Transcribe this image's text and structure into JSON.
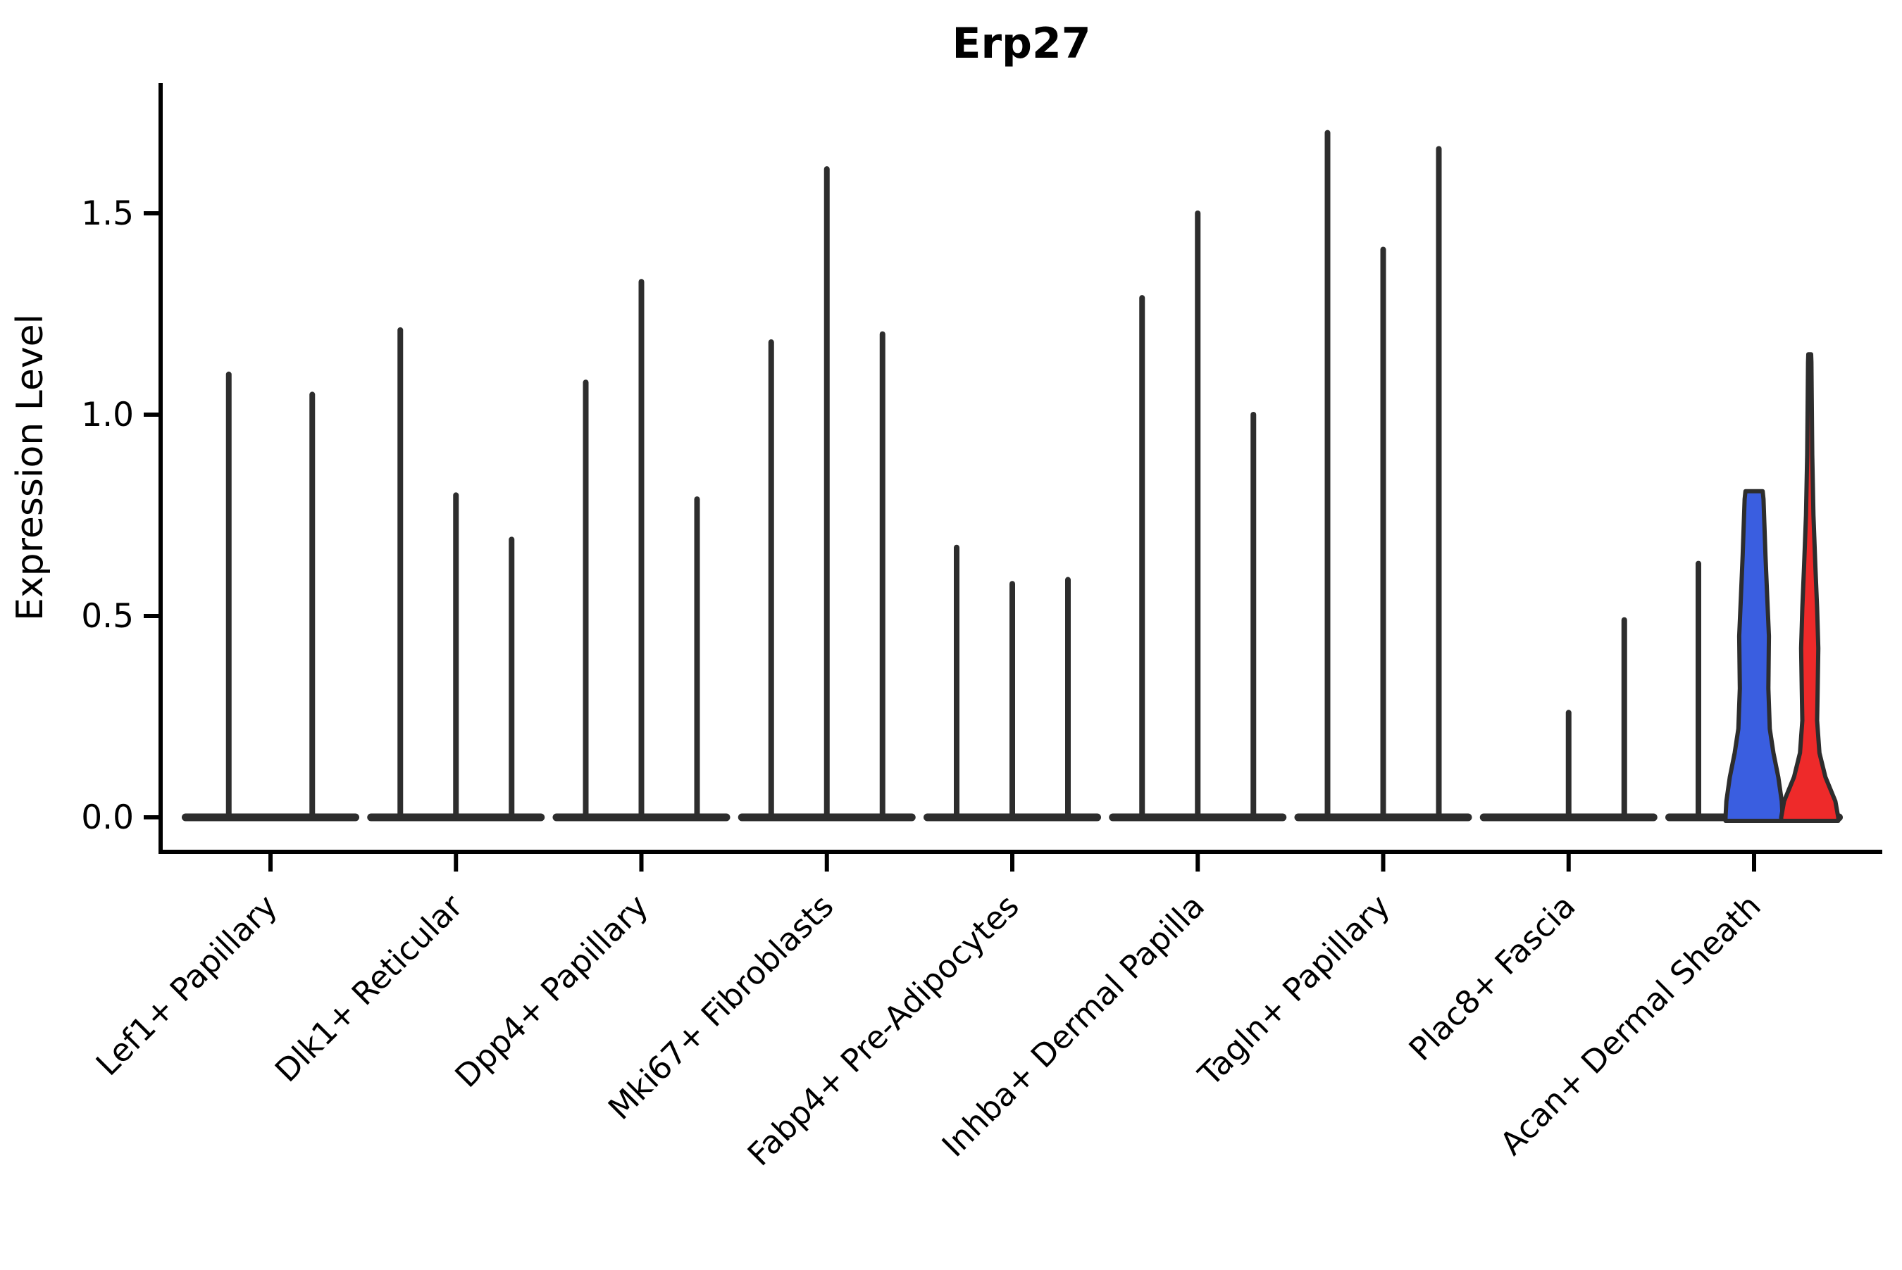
{
  "title": "Erp27",
  "axis": {
    "ylabel": "Expression Level",
    "ytick_labels": [
      "0.0",
      "0.5",
      "1.0",
      "1.5"
    ],
    "ytick_values": [
      0.0,
      0.5,
      1.0,
      1.5
    ]
  },
  "colors": {
    "violin_blue": "#3a5ee0",
    "violin_red": "#ee2a2a",
    "line_dark": "#2d2d2d",
    "axis_black": "#000000"
  },
  "chart_data": {
    "type": "violin",
    "title": "Erp27",
    "xlabel": "",
    "ylabel": "Expression Level",
    "ylim": [
      0,
      1.82
    ],
    "yticks": [
      0.0,
      0.5,
      1.0,
      1.5
    ],
    "grid": false,
    "legend": "none",
    "categories": [
      "Lef1+ Papillary",
      "Dlk1+ Reticular",
      "Dpp4+ Papillary",
      "Mki67+ Fibroblasts",
      "Fabp4+ Pre-Adipocytes",
      "Inhba+ Dermal Papilla",
      "Tagln+ Papillary",
      "Plac8+ Fascia",
      "Acan+ Dermal Sheath"
    ],
    "description": "Violin plot of Erp27 expression per fibroblast subtype; most violins collapse to a flat base at 0 with a thin spike to the max expressed cell. Only the last cluster (Acan+ Dermal Sheath) shows two filled violins (blue and red).",
    "groups": [
      {
        "category": "Lef1+ Papillary",
        "violins": [
          {
            "max_expression": 1.1,
            "fill": "none"
          },
          {
            "max_expression": 1.05,
            "fill": "none"
          }
        ]
      },
      {
        "category": "Dlk1+ Reticular",
        "violins": [
          {
            "max_expression": 1.21,
            "fill": "none"
          },
          {
            "max_expression": 0.8,
            "fill": "none"
          },
          {
            "max_expression": 0.69,
            "fill": "none"
          }
        ]
      },
      {
        "category": "Dpp4+ Papillary",
        "violins": [
          {
            "max_expression": 1.08,
            "fill": "none"
          },
          {
            "max_expression": 1.33,
            "fill": "none"
          },
          {
            "max_expression": 0.79,
            "fill": "none"
          }
        ]
      },
      {
        "category": "Mki67+ Fibroblasts",
        "violins": [
          {
            "max_expression": 1.18,
            "fill": "none"
          },
          {
            "max_expression": 1.61,
            "fill": "none"
          },
          {
            "max_expression": 1.2,
            "fill": "none"
          }
        ]
      },
      {
        "category": "Fabp4+ Pre-Adipocytes",
        "violins": [
          {
            "max_expression": 0.67,
            "fill": "none"
          },
          {
            "max_expression": 0.58,
            "fill": "none"
          },
          {
            "max_expression": 0.59,
            "fill": "none"
          }
        ]
      },
      {
        "category": "Inhba+ Dermal Papilla",
        "violins": [
          {
            "max_expression": 1.29,
            "fill": "none"
          },
          {
            "max_expression": 1.5,
            "fill": "none"
          },
          {
            "max_expression": 1.0,
            "fill": "none"
          }
        ]
      },
      {
        "category": "Tagln+ Papillary",
        "violins": [
          {
            "max_expression": 1.7,
            "fill": "none"
          },
          {
            "max_expression": 1.41,
            "fill": "none"
          },
          {
            "max_expression": 1.66,
            "fill": "none"
          }
        ]
      },
      {
        "category": "Plac8+ Fascia",
        "violins": [
          {
            "max_expression": 0.0,
            "fill": "none"
          },
          {
            "max_expression": 0.26,
            "fill": "none"
          },
          {
            "max_expression": 0.49,
            "fill": "none"
          }
        ]
      },
      {
        "category": "Acan+ Dermal Sheath",
        "violins": [
          {
            "max_expression": 0.63,
            "fill": "none"
          },
          {
            "max_expression": 0.81,
            "fill": "#3a5ee0",
            "density_profile": [
              [
                0.0,
                1.0
              ],
              [
                0.04,
                0.97
              ],
              [
                0.1,
                0.85
              ],
              [
                0.16,
                0.68
              ],
              [
                0.22,
                0.55
              ],
              [
                0.32,
                0.5
              ],
              [
                0.45,
                0.52
              ],
              [
                0.55,
                0.46
              ],
              [
                0.65,
                0.4
              ],
              [
                0.73,
                0.36
              ],
              [
                0.79,
                0.33
              ],
              [
                0.81,
                0.3
              ]
            ]
          },
          {
            "max_expression": 1.15,
            "fill": "#ee2a2a",
            "density_profile": [
              [
                0.0,
                1.0
              ],
              [
                0.04,
                0.9
              ],
              [
                0.1,
                0.55
              ],
              [
                0.16,
                0.34
              ],
              [
                0.24,
                0.26
              ],
              [
                0.32,
                0.28
              ],
              [
                0.42,
                0.3
              ],
              [
                0.52,
                0.26
              ],
              [
                0.62,
                0.2
              ],
              [
                0.75,
                0.13
              ],
              [
                0.9,
                0.09
              ],
              [
                1.05,
                0.07
              ],
              [
                1.13,
                0.06
              ],
              [
                1.15,
                0.05
              ]
            ]
          }
        ]
      }
    ]
  }
}
